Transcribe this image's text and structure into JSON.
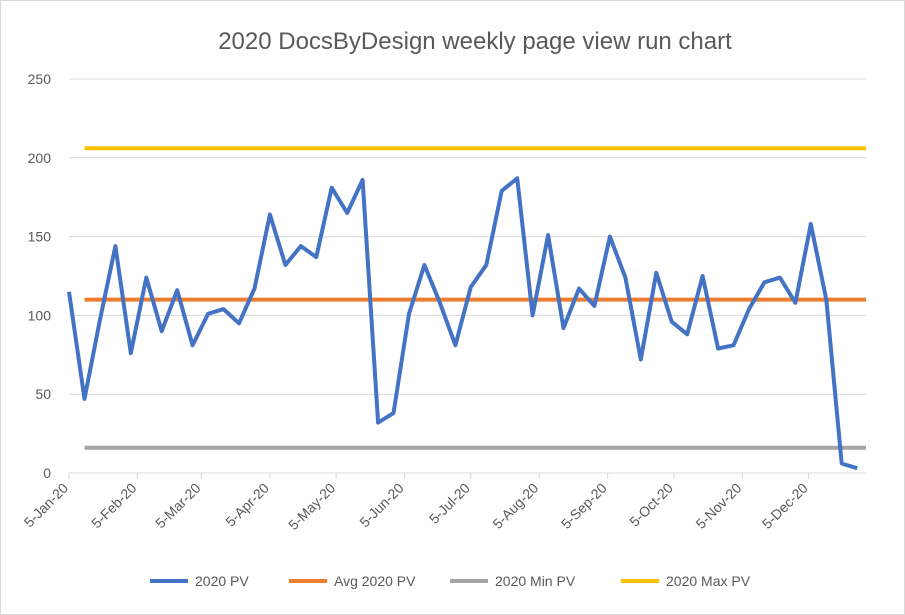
{
  "chart_data": {
    "type": "line",
    "title": "2020 DocsByDesign weekly page view run chart",
    "xlabel": "",
    "ylabel": "",
    "x_axis_type": "date",
    "x_range": [
      "2020-01-05",
      "2020-12-31"
    ],
    "xtick_labels": [
      "5-Jan-20",
      "5-Feb-20",
      "5-Mar-20",
      "5-Apr-20",
      "5-May-20",
      "5-Jun-20",
      "5-Jul-20",
      "5-Aug-20",
      "5-Sep-20",
      "5-Oct-20",
      "5-Nov-20",
      "5-Dec-20"
    ],
    "xtick_dates": [
      "2020-01-05",
      "2020-02-05",
      "2020-03-05",
      "2020-04-05",
      "2020-05-05",
      "2020-06-05",
      "2020-07-05",
      "2020-08-05",
      "2020-09-05",
      "2020-10-05",
      "2020-11-05",
      "2020-12-05"
    ],
    "ylim": [
      0,
      250
    ],
    "yticks": [
      0,
      50,
      100,
      150,
      200,
      250
    ],
    "grid": true,
    "legend_position": "bottom",
    "series": [
      {
        "name": "2020 PV",
        "color": "#4472c4",
        "x": [
          "2020-01-05",
          "2020-01-12",
          "2020-01-19",
          "2020-01-26",
          "2020-02-02",
          "2020-02-09",
          "2020-02-16",
          "2020-02-23",
          "2020-03-01",
          "2020-03-08",
          "2020-03-15",
          "2020-03-22",
          "2020-03-29",
          "2020-04-05",
          "2020-04-12",
          "2020-04-19",
          "2020-04-26",
          "2020-05-03",
          "2020-05-10",
          "2020-05-17",
          "2020-05-24",
          "2020-05-31",
          "2020-06-07",
          "2020-06-14",
          "2020-06-21",
          "2020-06-28",
          "2020-07-05",
          "2020-07-12",
          "2020-07-19",
          "2020-07-26",
          "2020-08-02",
          "2020-08-09",
          "2020-08-16",
          "2020-08-23",
          "2020-08-30",
          "2020-09-06",
          "2020-09-13",
          "2020-09-20",
          "2020-09-27",
          "2020-10-04",
          "2020-10-11",
          "2020-10-18",
          "2020-10-25",
          "2020-11-01",
          "2020-11-08",
          "2020-11-15",
          "2020-11-22",
          "2020-11-29",
          "2020-12-06",
          "2020-12-13",
          "2020-12-20",
          "2020-12-27"
        ],
        "values": [
          115,
          47,
          97,
          144,
          76,
          124,
          90,
          116,
          81,
          101,
          104,
          95,
          117,
          164,
          132,
          144,
          137,
          181,
          165,
          186,
          32,
          38,
          101,
          132,
          108,
          81,
          118,
          132,
          179,
          187,
          100,
          151,
          92,
          117,
          106,
          150,
          124,
          72,
          127,
          96,
          88,
          125,
          79,
          81,
          104,
          121,
          124,
          108,
          158,
          110,
          6,
          3
        ]
      },
      {
        "name": "Avg 2020 PV",
        "color": "#ed7d31",
        "x": [
          "2020-01-12",
          "2020-12-31"
        ],
        "values": [
          110,
          110
        ]
      },
      {
        "name": "2020 Min PV",
        "color": "#a5a5a5",
        "x": [
          "2020-01-12",
          "2020-12-31"
        ],
        "values": [
          16,
          16
        ]
      },
      {
        "name": "2020 Max PV",
        "color": "#ffc000",
        "x": [
          "2020-01-12",
          "2020-12-31"
        ],
        "values": [
          206,
          206
        ]
      }
    ]
  }
}
